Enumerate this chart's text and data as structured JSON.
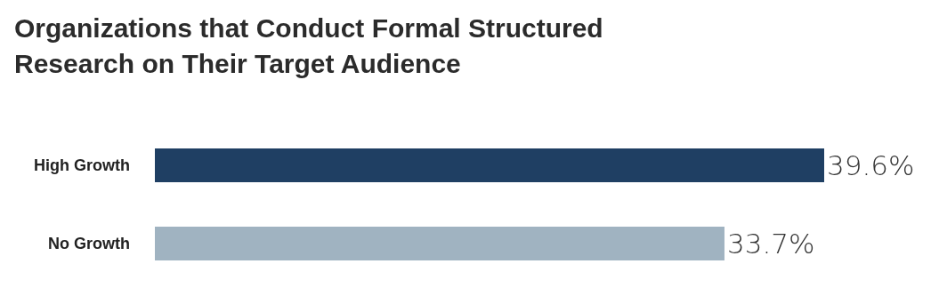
{
  "chart_data": {
    "type": "bar",
    "orientation": "horizontal",
    "title": "Organizations that Conduct Formal Structured\nResearch on Their Target Audience",
    "categories": [
      "High Growth",
      "No Growth"
    ],
    "values": [
      39.6,
      33.7
    ],
    "value_labels": [
      "39.6%",
      "33.7%"
    ],
    "colors": [
      "#1f3f63",
      "#a0b3c1"
    ],
    "grid": false,
    "legend": false
  }
}
